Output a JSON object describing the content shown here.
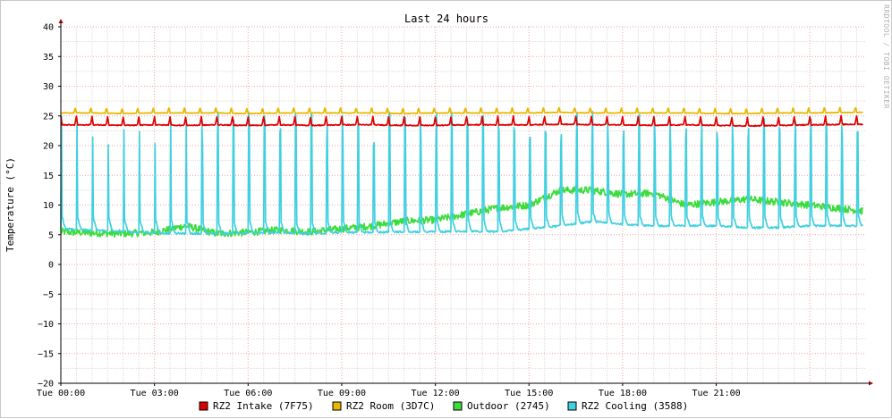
{
  "chart_data": {
    "type": "line",
    "title": "Last 24 hours",
    "ylabel": "Temperature (°C)",
    "watermark": "RRDTOOL / TOBI OETIKER",
    "ylim": [
      -20,
      40
    ],
    "yticks": [
      40,
      35,
      30,
      25,
      20,
      15,
      10,
      5,
      0,
      -5,
      -10,
      -15,
      -20
    ],
    "xlim_hours": [
      0,
      25.8
    ],
    "xticks": [
      {
        "hour": 0,
        "label": "Tue 00:00"
      },
      {
        "hour": 3,
        "label": "Tue 03:00"
      },
      {
        "hour": 6,
        "label": "Tue 06:00"
      },
      {
        "hour": 9,
        "label": "Tue 09:00"
      },
      {
        "hour": 12,
        "label": "Tue 12:00"
      },
      {
        "hour": 15,
        "label": "Tue 15:00"
      },
      {
        "hour": 18,
        "label": "Tue 18:00"
      },
      {
        "hour": 21,
        "label": "Tue 21:00"
      }
    ],
    "legend_placement": "bottom-center",
    "series": [
      {
        "name": "RZ2 Intake (7F75)",
        "color": "#e00000",
        "x": [
          0,
          1,
          2,
          3,
          4,
          5,
          6,
          7,
          8,
          9,
          10,
          11,
          12,
          13,
          14,
          15,
          16,
          17,
          18,
          19,
          20,
          21,
          22,
          23,
          24,
          25.7
        ],
        "values": [
          23.5,
          23.5,
          23.4,
          23.5,
          23.4,
          23.5,
          23.4,
          23.5,
          23.4,
          23.5,
          23.5,
          23.4,
          23.4,
          23.5,
          23.5,
          23.5,
          23.6,
          23.5,
          23.5,
          23.4,
          23.5,
          23.4,
          23.3,
          23.4,
          23.5,
          23.6
        ]
      },
      {
        "name": "RZ2 Room (3D7C)",
        "color": "#e6b800",
        "x": [
          0,
          1,
          2,
          3,
          4,
          5,
          6,
          7,
          8,
          9,
          10,
          11,
          12,
          13,
          14,
          15,
          16,
          17,
          18,
          19,
          20,
          21,
          22,
          23,
          24,
          25.7
        ],
        "values": [
          25.5,
          25.5,
          25.4,
          25.5,
          25.5,
          25.5,
          25.4,
          25.5,
          25.5,
          25.5,
          25.5,
          25.4,
          25.5,
          25.5,
          25.5,
          25.5,
          25.6,
          25.5,
          25.5,
          25.5,
          25.5,
          25.4,
          25.4,
          25.5,
          25.5,
          25.6
        ]
      },
      {
        "name": "Outdoor (2745)",
        "color": "#3ddc3d",
        "x": [
          0,
          1,
          2,
          3,
          4,
          5,
          6,
          7,
          8,
          9,
          10,
          11,
          12,
          13,
          14,
          15,
          16,
          17,
          18,
          19,
          20,
          21,
          22,
          23,
          24,
          25.7
        ],
        "values": [
          5.5,
          5.3,
          5.2,
          5.4,
          6.5,
          5.2,
          5.4,
          5.8,
          5.5,
          6.0,
          6.5,
          7.3,
          7.5,
          8.5,
          9.5,
          10.0,
          12.5,
          12.5,
          11.8,
          12.0,
          10.0,
          10.5,
          11.0,
          10.5,
          10.0,
          9.0
        ]
      },
      {
        "name": "RZ2 Cooling (3588)",
        "color": "#40d0e0",
        "x": [
          0,
          1,
          2,
          3,
          4,
          5,
          6,
          7,
          8,
          9,
          10,
          11,
          12,
          13,
          14,
          15,
          16,
          17,
          18,
          19,
          20,
          21,
          22,
          23,
          24,
          25.7
        ],
        "values": [
          6.0,
          5.8,
          5.5,
          5.3,
          5.2,
          5.2,
          5.3,
          5.4,
          5.2,
          5.4,
          5.4,
          5.5,
          5.5,
          5.6,
          5.5,
          6.0,
          6.5,
          7.2,
          6.8,
          6.5,
          6.5,
          6.5,
          6.2,
          6.2,
          6.5,
          6.5
        ],
        "spike_peak_range": [
          20,
          26
        ]
      }
    ]
  }
}
